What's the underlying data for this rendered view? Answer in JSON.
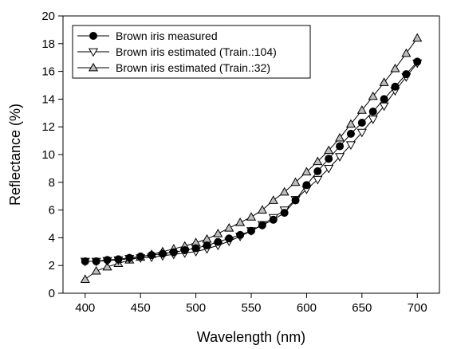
{
  "chart_data": {
    "type": "line",
    "xlabel": "Wavelength (nm)",
    "ylabel": "Reflectance (%)",
    "xlim": [
      380,
      720
    ],
    "ylim": [
      0,
      20
    ],
    "xticks": [
      400,
      450,
      500,
      550,
      600,
      650,
      700
    ],
    "yticks": [
      0,
      2,
      4,
      6,
      8,
      10,
      12,
      14,
      16,
      18,
      20
    ],
    "grid": false,
    "legend_position": "top-left",
    "x": [
      400,
      410,
      420,
      430,
      440,
      450,
      460,
      470,
      480,
      490,
      500,
      510,
      520,
      530,
      540,
      550,
      560,
      570,
      580,
      590,
      600,
      610,
      620,
      630,
      640,
      650,
      660,
      670,
      680,
      690,
      700
    ],
    "series": [
      {
        "name": "Brown iris measured",
        "marker": "circle",
        "marker_color": "#000000",
        "values": [
          2.3,
          2.3,
          2.4,
          2.45,
          2.55,
          2.65,
          2.75,
          2.85,
          2.95,
          3.1,
          3.25,
          3.45,
          3.7,
          3.95,
          4.2,
          4.5,
          4.9,
          5.3,
          5.8,
          6.7,
          7.8,
          8.8,
          9.7,
          10.6,
          11.5,
          12.3,
          13.1,
          14.0,
          14.9,
          15.8,
          16.7
        ]
      },
      {
        "name": "Brown iris estimated (Train.:104)",
        "marker": "triangle-down",
        "marker_color": "#ffffff",
        "values": [
          2.3,
          2.3,
          2.35,
          2.4,
          2.5,
          2.55,
          2.6,
          2.7,
          2.8,
          2.9,
          3.0,
          3.2,
          3.45,
          3.75,
          4.1,
          4.5,
          4.95,
          5.45,
          6.0,
          6.75,
          7.5,
          8.2,
          9.0,
          9.85,
          10.7,
          11.6,
          12.55,
          13.5,
          14.6,
          15.6,
          16.6
        ]
      },
      {
        "name": "Brown iris estimated (Train.:32)",
        "marker": "triangle-up",
        "marker_color": "#bdbdbd",
        "values": [
          1.0,
          1.6,
          1.9,
          2.15,
          2.4,
          2.6,
          2.8,
          3.0,
          3.2,
          3.4,
          3.65,
          3.9,
          4.3,
          4.7,
          5.1,
          5.5,
          6.0,
          6.7,
          7.3,
          8.0,
          8.75,
          9.5,
          10.3,
          11.2,
          12.2,
          13.2,
          14.2,
          15.2,
          16.2,
          17.3,
          18.4
        ]
      }
    ]
  }
}
